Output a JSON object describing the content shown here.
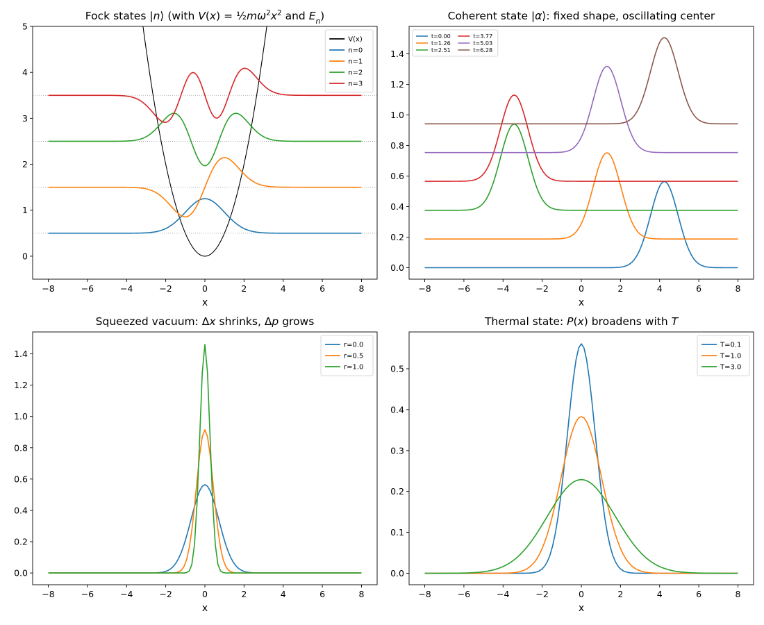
{
  "figure": {
    "layout": "2x2 grid"
  },
  "chart_data": [
    {
      "type": "line",
      "title_parts": [
        {
          "t": "Fock states |"
        },
        {
          "t": "n",
          "i": true
        },
        {
          "t": "⟩ (with "
        },
        {
          "t": "V",
          "i": true
        },
        {
          "t": "("
        },
        {
          "t": "x",
          "i": true
        },
        {
          "t": ") = "
        },
        {
          "t": "½"
        },
        {
          "t": "mω",
          "i": true
        },
        {
          "t": "2",
          "sup": true
        },
        {
          "t": "x",
          "i": true
        },
        {
          "t": "2",
          "sup": true
        },
        {
          "t": " and "
        },
        {
          "t": "E",
          "i": true
        },
        {
          "t": "n",
          "i": true,
          "sub": true
        },
        {
          "t": ")"
        }
      ],
      "xlabel": "x",
      "ylabel": "",
      "xlim": [
        -8.8,
        8.8
      ],
      "ylim": [
        -0.5,
        5.0
      ],
      "xticks": [
        -8,
        -6,
        -4,
        -2,
        0,
        2,
        4,
        6,
        8
      ],
      "xtick_labels": [
        "−8",
        "−6",
        "−4",
        "−2",
        "0",
        "2",
        "4",
        "6",
        "8"
      ],
      "yticks": [
        0,
        1,
        2,
        3,
        4,
        5
      ],
      "ytick_labels": [
        "0",
        "1",
        "2",
        "3",
        "4",
        "5"
      ],
      "grid": false,
      "legend": {
        "position": "top-right",
        "small": false
      },
      "x_range": [
        -8,
        8
      ],
      "hlines": [
        {
          "y": 0.5,
          "color": "#999999",
          "style": "dotted"
        },
        {
          "y": 1.5,
          "color": "#999999",
          "style": "dotted"
        },
        {
          "y": 2.5,
          "color": "#999999",
          "style": "dotted"
        },
        {
          "y": 3.5,
          "color": "#999999",
          "style": "dotted"
        }
      ],
      "series": [
        {
          "name": "V(x)",
          "color": "#000000",
          "kind": "potential"
        },
        {
          "name": "n=0",
          "color": "#1f77b4",
          "kind": "fock",
          "n": 0
        },
        {
          "name": "n=1",
          "color": "#ff7f0e",
          "kind": "fock",
          "n": 1
        },
        {
          "name": "n=2",
          "color": "#2ca02c",
          "kind": "fock",
          "n": 2
        },
        {
          "name": "n=3",
          "color": "#d62728",
          "kind": "fock",
          "n": 3
        }
      ]
    },
    {
      "type": "line",
      "title_parts": [
        {
          "t": "Coherent state |"
        },
        {
          "t": "α",
          "i": true
        },
        {
          "t": "⟩: fixed shape, oscillating center"
        }
      ],
      "xlabel": "x",
      "ylabel": "",
      "xlim": [
        -8.8,
        8.8
      ],
      "ylim": [
        -0.075,
        1.58
      ],
      "xticks": [
        -8,
        -6,
        -4,
        -2,
        0,
        2,
        4,
        6,
        8
      ],
      "xtick_labels": [
        "−8",
        "−6",
        "−4",
        "−2",
        "0",
        "2",
        "4",
        "6",
        "8"
      ],
      "yticks": [
        0.0,
        0.2,
        0.4,
        0.6,
        0.8,
        1.0,
        1.2,
        1.4
      ],
      "ytick_labels": [
        "0.0",
        "0.2",
        "0.4",
        "0.6",
        "0.8",
        "1.0",
        "1.2",
        "1.4"
      ],
      "grid": false,
      "legend": {
        "position": "top-left",
        "small": true,
        "columns": 2
      },
      "x_range": [
        -8,
        8
      ],
      "series": [
        {
          "name": "t=0.00",
          "color": "#1f77b4",
          "kind": "gauss",
          "center": 4.24,
          "offset": 0.0,
          "peak": 0.564,
          "sigma": 0.7071
        },
        {
          "name": "t=1.26",
          "color": "#ff7f0e",
          "kind": "gauss",
          "center": 1.31,
          "offset": 0.188,
          "peak": 0.564,
          "sigma": 0.7071
        },
        {
          "name": "t=2.51",
          "color": "#2ca02c",
          "kind": "gauss",
          "center": -3.43,
          "offset": 0.376,
          "peak": 0.564,
          "sigma": 0.7071
        },
        {
          "name": "t=3.77",
          "color": "#d62728",
          "kind": "gauss",
          "center": -3.43,
          "offset": 0.566,
          "peak": 0.564,
          "sigma": 0.7071
        },
        {
          "name": "t=5.03",
          "color": "#9467bd",
          "kind": "gauss",
          "center": 1.31,
          "offset": 0.754,
          "peak": 0.564,
          "sigma": 0.7071
        },
        {
          "name": "t=6.28",
          "color": "#8c564b",
          "kind": "gauss",
          "center": 4.24,
          "offset": 0.942,
          "peak": 0.564,
          "sigma": 0.7071
        }
      ]
    },
    {
      "type": "line",
      "title_parts": [
        {
          "t": "Squeezed vacuum: Δ"
        },
        {
          "t": "x",
          "i": true
        },
        {
          "t": " shrinks, Δ"
        },
        {
          "t": "p",
          "i": true
        },
        {
          "t": " grows"
        }
      ],
      "xlabel": "x",
      "ylabel": "",
      "xlim": [
        -8.8,
        8.8
      ],
      "ylim": [
        -0.075,
        1.54
      ],
      "xticks": [
        -8,
        -6,
        -4,
        -2,
        0,
        2,
        4,
        6,
        8
      ],
      "xtick_labels": [
        "−8",
        "−6",
        "−4",
        "−2",
        "0",
        "2",
        "4",
        "6",
        "8"
      ],
      "yticks": [
        0.0,
        0.2,
        0.4,
        0.6,
        0.8,
        1.0,
        1.2,
        1.4
      ],
      "ytick_labels": [
        "0.0",
        "0.2",
        "0.4",
        "0.6",
        "0.8",
        "1.0",
        "1.2",
        "1.4"
      ],
      "grid": false,
      "legend": {
        "position": "top-right",
        "small": false
      },
      "x_range": [
        -8,
        8
      ],
      "sample_count": 120,
      "series": [
        {
          "name": "r=0.0",
          "color": "#1f77b4",
          "kind": "gauss",
          "center": 0,
          "offset": 0,
          "peak": 0.564,
          "sigma": 0.7071
        },
        {
          "name": "r=0.5",
          "color": "#ff7f0e",
          "kind": "gauss",
          "center": 0,
          "offset": 0,
          "peak": 0.915,
          "sigma": 0.4289
        },
        {
          "name": "r=1.0",
          "color": "#2ca02c",
          "kind": "gauss",
          "center": 0,
          "offset": 0,
          "peak": 1.46,
          "sigma": 0.2601
        }
      ]
    },
    {
      "type": "line",
      "title_parts": [
        {
          "t": "Thermal state: "
        },
        {
          "t": "P",
          "i": true
        },
        {
          "t": "("
        },
        {
          "t": "x",
          "i": true
        },
        {
          "t": ") broadens with "
        },
        {
          "t": "T",
          "i": true
        }
      ],
      "xlabel": "x",
      "ylabel": "",
      "xlim": [
        -8.8,
        8.8
      ],
      "ylim": [
        -0.028,
        0.59
      ],
      "xticks": [
        -8,
        -6,
        -4,
        -2,
        0,
        2,
        4,
        6,
        8
      ],
      "xtick_labels": [
        "−8",
        "−6",
        "−4",
        "−2",
        "0",
        "2",
        "4",
        "6",
        "8"
      ],
      "yticks": [
        0.0,
        0.1,
        0.2,
        0.3,
        0.4,
        0.5
      ],
      "ytick_labels": [
        "0.0",
        "0.1",
        "0.2",
        "0.3",
        "0.4",
        "0.5"
      ],
      "grid": false,
      "legend": {
        "position": "top-right",
        "small": false
      },
      "x_range": [
        -8,
        8
      ],
      "sample_count": 120,
      "series": [
        {
          "name": "T=0.1",
          "color": "#1f77b4",
          "kind": "gauss",
          "center": 0,
          "offset": 0,
          "peak": 0.561,
          "sigma": 0.711
        },
        {
          "name": "T=1.0",
          "color": "#ff7f0e",
          "kind": "gauss",
          "center": 0,
          "offset": 0,
          "peak": 0.383,
          "sigma": 1.042
        },
        {
          "name": "T=3.0",
          "color": "#2ca02c",
          "kind": "gauss",
          "center": 0,
          "offset": 0,
          "peak": 0.229,
          "sigma": 1.742
        }
      ]
    }
  ]
}
